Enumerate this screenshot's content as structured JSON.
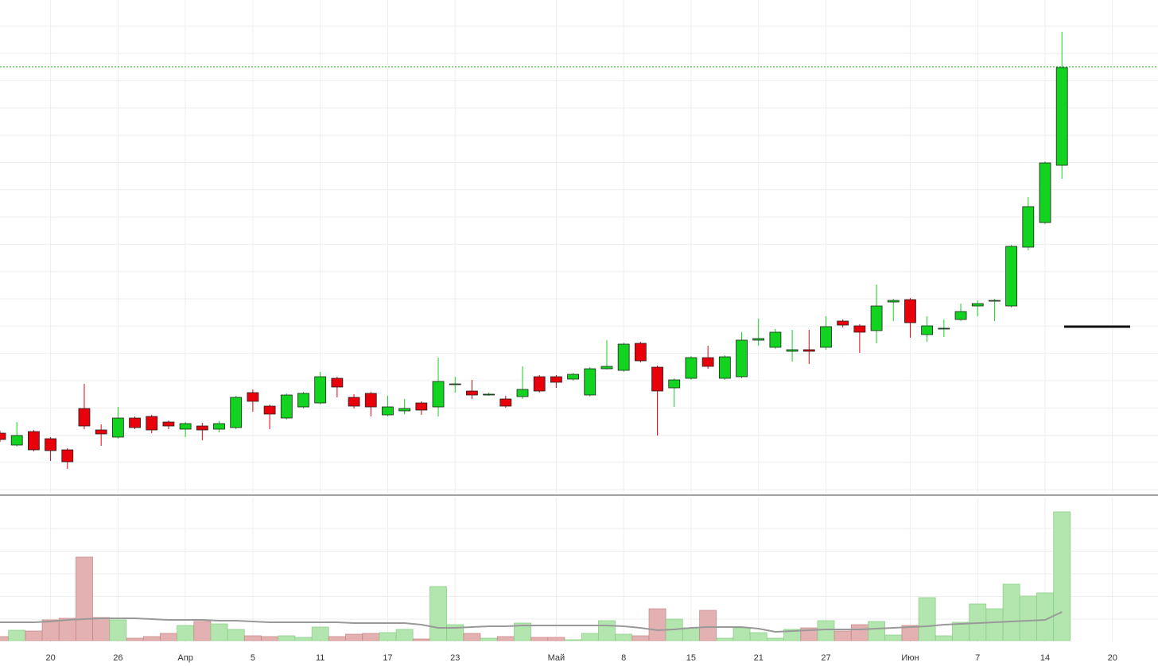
{
  "chart_data": [
    {
      "type": "candlestick",
      "open": [
        75,
        60,
        77,
        68,
        54,
        106,
        79,
        70,
        94,
        96,
        89,
        80,
        84,
        80,
        82,
        126,
        109,
        94,
        108,
        113,
        144,
        120,
        125,
        98,
        103,
        113,
        108,
        136,
        128,
        124,
        118,
        121,
        146,
        146,
        143,
        123,
        156,
        154,
        188,
        158,
        132,
        144,
        170,
        144,
        146,
        192,
        183,
        178,
        180,
        183,
        216,
        210,
        204,
        240,
        243,
        199,
        207,
        218,
        235,
        241,
        235,
        309,
        340,
        412
      ],
      "high": [
        78,
        89,
        79,
        70,
        56,
        137,
        86,
        108,
        96,
        98,
        91,
        89,
        88,
        90,
        122,
        130,
        111,
        125,
        127,
        152,
        146,
        124,
        127,
        122,
        118,
        115,
        170,
        146,
        142,
        126,
        122,
        159,
        148,
        148,
        151,
        158,
        192,
        189,
        190,
        160,
        144,
        172,
        185,
        173,
        202,
        219,
        206,
        205,
        205,
        222,
        218,
        212,
        262,
        244,
        245,
        222,
        218,
        238,
        242,
        244,
        312,
        372,
        417,
        580
      ],
      "low": [
        64,
        58,
        52,
        40,
        30,
        80,
        59,
        68,
        80,
        75,
        80,
        70,
        66,
        76,
        80,
        102,
        80,
        92,
        106,
        111,
        120,
        106,
        96,
        96,
        99,
        98,
        96,
        126,
        118,
        122,
        107,
        118,
        126,
        132,
        141,
        121,
        155,
        152,
        164,
        72,
        108,
        142,
        156,
        142,
        144,
        185,
        181,
        165,
        162,
        180,
        208,
        176,
        188,
        216,
        195,
        190,
        196,
        216,
        222,
        216,
        233,
        305,
        338,
        395
      ],
      "close": [
        67,
        72,
        54,
        53,
        39,
        84,
        74,
        94,
        82,
        79,
        84,
        87,
        79,
        87,
        120,
        115,
        99,
        123,
        125,
        146,
        133,
        109,
        108,
        108,
        106,
        104,
        140,
        137,
        123,
        124,
        109,
        130,
        128,
        139,
        149,
        156,
        159,
        187,
        166,
        128,
        142,
        170,
        159,
        171,
        192,
        194,
        202,
        180,
        178,
        209,
        211,
        202,
        235,
        242,
        214,
        210,
        207,
        228,
        238,
        242,
        310,
        360,
        415,
        535
      ],
      "up_color": "#12d420",
      "down_color": "#e8000b",
      "ylim": [
        0,
        590
      ],
      "xlim": [
        0,
        68.7
      ],
      "xticks": [
        {
          "value": 3,
          "label": "20"
        },
        {
          "value": 7,
          "label": "26"
        },
        {
          "value": 11,
          "label": "Апр"
        },
        {
          "value": 15,
          "label": "5"
        },
        {
          "value": 19,
          "label": "11"
        },
        {
          "value": 23,
          "label": "17"
        },
        {
          "value": 27,
          "label": "23"
        },
        {
          "value": 33,
          "label": "Май"
        },
        {
          "value": 37,
          "label": "8"
        },
        {
          "value": 41,
          "label": "15"
        },
        {
          "value": 45,
          "label": "21"
        },
        {
          "value": 49,
          "label": "27"
        },
        {
          "value": 54,
          "label": "Июн"
        },
        {
          "value": 58,
          "label": "7"
        },
        {
          "value": 62,
          "label": "14"
        },
        {
          "value": 66,
          "label": "20"
        }
      ],
      "grid": true
    },
    {
      "type": "volume",
      "series": [
        {
          "name": "volume",
          "values": [
            5,
            13,
            12,
            26,
            28,
            105,
            29,
            26,
            3,
            5,
            9,
            19,
            24,
            21,
            14,
            6,
            5,
            6,
            4,
            17,
            5,
            8,
            9,
            10,
            14,
            2,
            68,
            20,
            9,
            3,
            5,
            22,
            4,
            4,
            1,
            9,
            25,
            8,
            6,
            40,
            27,
            16,
            38,
            3,
            16,
            10,
            3,
            14,
            16,
            25,
            12,
            20,
            24,
            7,
            19,
            54,
            6,
            23,
            46,
            40,
            71,
            56,
            60,
            162
          ]
        },
        {
          "name": "average",
          "color": "#999999",
          "values": [
            23,
            23,
            23,
            24,
            26,
            27,
            28,
            28,
            28,
            27,
            26,
            26,
            26,
            25,
            25,
            24,
            23,
            23,
            23,
            23,
            23,
            22,
            22,
            22,
            22,
            20,
            16,
            16,
            17,
            18,
            18,
            19,
            19,
            19,
            19,
            19,
            19,
            18,
            16,
            13,
            14,
            16,
            17,
            17,
            17,
            15,
            11,
            12,
            13,
            14,
            14,
            14,
            15,
            16,
            17,
            18,
            20,
            21,
            22,
            23,
            24,
            25,
            26,
            36
          ]
        }
      ],
      "up_color": "#b3e6ae",
      "down_color": "#e3b1b1",
      "ylim": [
        0,
        170
      ],
      "grid": true
    }
  ]
}
